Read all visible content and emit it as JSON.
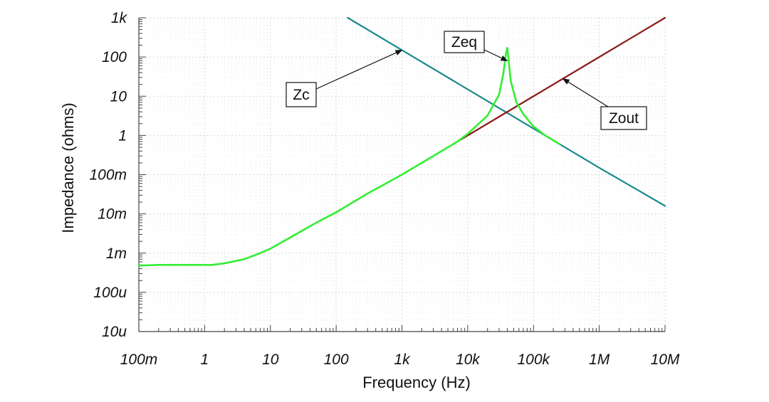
{
  "chart_data": {
    "type": "line",
    "title": "",
    "xlabel": "Frequency (Hz)",
    "ylabel": "Impedance (ohms)",
    "xscale": "log",
    "yscale": "log",
    "xlim": [
      0.1,
      10000000
    ],
    "ylim": [
      1e-05,
      1000
    ],
    "grid": true,
    "x_ticks": [
      {
        "value": 0.1,
        "label": "100m"
      },
      {
        "value": 1,
        "label": "1"
      },
      {
        "value": 10,
        "label": "10"
      },
      {
        "value": 100,
        "label": "100"
      },
      {
        "value": 1000,
        "label": "1k"
      },
      {
        "value": 10000,
        "label": "10k"
      },
      {
        "value": 100000,
        "label": "100k"
      },
      {
        "value": 1000000,
        "label": "1M"
      },
      {
        "value": 10000000,
        "label": "10M"
      }
    ],
    "y_ticks": [
      {
        "value": 1e-05,
        "label": "10u"
      },
      {
        "value": 0.0001,
        "label": "100u"
      },
      {
        "value": 0.001,
        "label": "1m"
      },
      {
        "value": 0.01,
        "label": "10m"
      },
      {
        "value": 0.1,
        "label": "100m"
      },
      {
        "value": 1,
        "label": "1"
      },
      {
        "value": 10,
        "label": "10"
      },
      {
        "value": 100,
        "label": "100"
      },
      {
        "value": 1000,
        "label": "1k"
      }
    ],
    "series": [
      {
        "name": "Zc",
        "color": "#1a8a8a",
        "x": [
          150,
          1000,
          10000,
          100000,
          1000000,
          10000000
        ],
        "y": [
          1000,
          150,
          15,
          1.5,
          0.15,
          0.016
        ]
      },
      {
        "name": "Zout",
        "color": "#8b1a1a",
        "x": [
          7000,
          10000,
          100000,
          1000000,
          10000000
        ],
        "y": [
          0.7,
          1,
          10,
          100,
          1000
        ]
      },
      {
        "name": "Zeq",
        "color": "#33ee33",
        "x": [
          0.1,
          0.2,
          1.3,
          2,
          4,
          7,
          10,
          20,
          50,
          100,
          300,
          1000,
          3000,
          7000,
          10000,
          20000,
          30000,
          35000,
          38000,
          40000,
          42000,
          45000,
          55000,
          70000,
          100000,
          150000,
          250000
        ],
        "y": [
          0.00048,
          0.0005,
          0.0005,
          0.00055,
          0.0007,
          0.001,
          0.0013,
          0.0025,
          0.006,
          0.011,
          0.033,
          0.1,
          0.3,
          0.7,
          1.1,
          3.2,
          11,
          40,
          120,
          170,
          80,
          25,
          7,
          3.5,
          1.7,
          1.0,
          0.6
        ]
      }
    ],
    "annotations": [
      {
        "text": "Zc",
        "target_series": "Zc",
        "target_x": 1000,
        "target_y": 150
      },
      {
        "text": "Zeq",
        "target_series": "Zeq",
        "target_x": 40000,
        "target_y": 80
      },
      {
        "text": "Zout",
        "target_series": "Zout",
        "target_x": 280000,
        "target_y": 28
      }
    ]
  }
}
